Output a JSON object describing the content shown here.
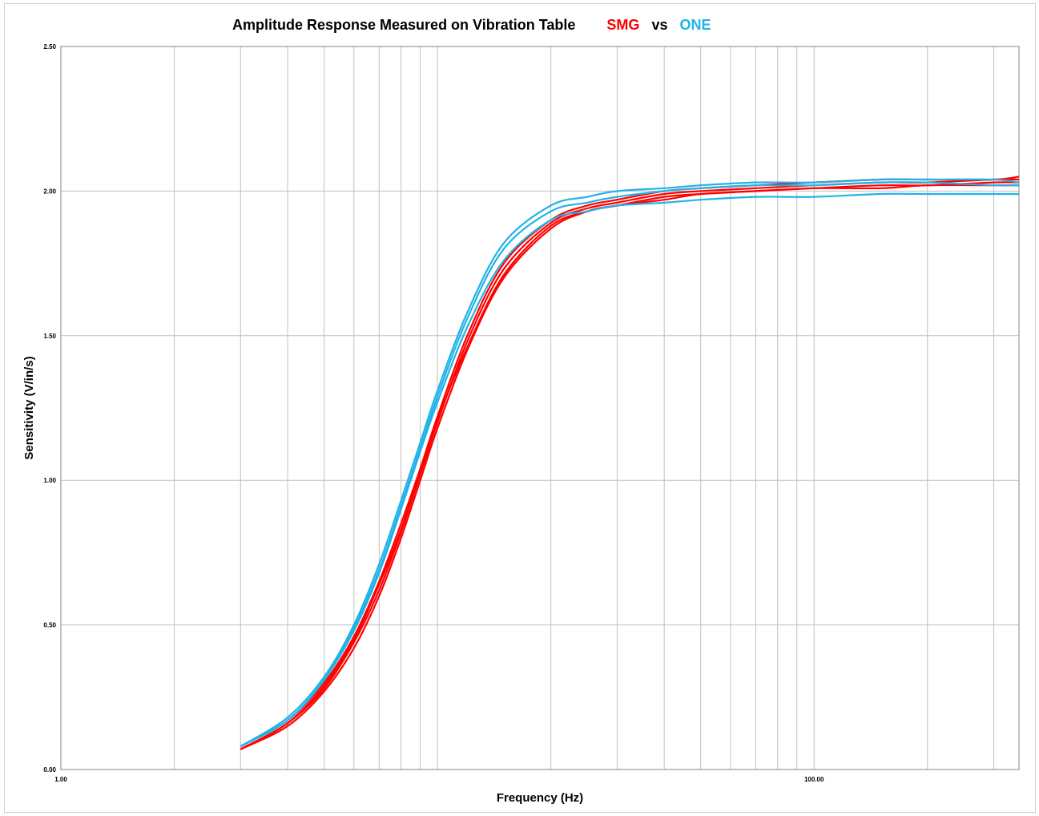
{
  "chart_data": {
    "type": "line",
    "title": "Amplitude Response Measured on Vibration Table",
    "title_tags": [
      {
        "text": "SMG",
        "color": "#ff0000"
      },
      {
        "text": "vs",
        "color": "#000000"
      },
      {
        "text": "ONE",
        "color": "#1fb3e8"
      }
    ],
    "xlabel": "Frequency (Hz)",
    "ylabel": "Sensitivity (V/in/s)",
    "xscale": "log",
    "xlim": [
      1,
      350
    ],
    "ylim": [
      0,
      2.5
    ],
    "x_tick_labels": [
      {
        "value": 1,
        "label": "1.00"
      },
      {
        "value": 100,
        "label": "100.00"
      }
    ],
    "y_tick_labels": [
      {
        "value": 0,
        "label": "0.00"
      },
      {
        "value": 0.5,
        "label": "0.50"
      },
      {
        "value": 1.0,
        "label": "1.00"
      },
      {
        "value": 1.5,
        "label": "1.50"
      },
      {
        "value": 2.0,
        "label": "2.00"
      },
      {
        "value": 2.5,
        "label": "2.50"
      }
    ],
    "grid": true,
    "series": [
      {
        "group": "SMG",
        "color": "#ff0000",
        "x": [
          3,
          4,
          5,
          6,
          7,
          8,
          9,
          10,
          12,
          15,
          20,
          25,
          30,
          40,
          50,
          70,
          100,
          150,
          200,
          300,
          350
        ],
        "y": [
          0.07,
          0.15,
          0.27,
          0.42,
          0.6,
          0.8,
          1.0,
          1.18,
          1.45,
          1.7,
          1.87,
          1.93,
          1.95,
          1.97,
          1.99,
          2.0,
          2.01,
          2.01,
          2.02,
          2.02,
          2.02
        ]
      },
      {
        "group": "SMG",
        "color": "#ff0000",
        "x": [
          3,
          4,
          5,
          6,
          7,
          8,
          9,
          10,
          12,
          15,
          20,
          25,
          30,
          40,
          50,
          70,
          100,
          150,
          200,
          300,
          350
        ],
        "y": [
          0.07,
          0.16,
          0.28,
          0.44,
          0.62,
          0.82,
          1.02,
          1.2,
          1.48,
          1.73,
          1.89,
          1.94,
          1.96,
          1.99,
          2.0,
          2.01,
          2.02,
          2.03,
          2.03,
          2.04,
          2.04
        ]
      },
      {
        "group": "SMG",
        "color": "#ff0000",
        "x": [
          3,
          4,
          5,
          6,
          7,
          8,
          9,
          10,
          12,
          15,
          20,
          25,
          30,
          40,
          50,
          70,
          100,
          150,
          200,
          300,
          350
        ],
        "y": [
          0.08,
          0.17,
          0.3,
          0.46,
          0.65,
          0.85,
          1.04,
          1.22,
          1.5,
          1.75,
          1.9,
          1.95,
          1.97,
          2.0,
          2.01,
          2.02,
          2.03,
          2.04,
          2.04,
          2.04,
          2.05
        ]
      },
      {
        "group": "SMG",
        "color": "#ff0000",
        "x": [
          3,
          4,
          5,
          6,
          7,
          8,
          9,
          10,
          12,
          15,
          20,
          25,
          30,
          40,
          50,
          70,
          100,
          150,
          200,
          300,
          350
        ],
        "y": [
          0.07,
          0.16,
          0.29,
          0.45,
          0.64,
          0.83,
          1.03,
          1.21,
          1.46,
          1.71,
          1.88,
          1.93,
          1.95,
          1.98,
          1.99,
          2.0,
          2.01,
          2.02,
          2.02,
          2.03,
          2.03
        ]
      },
      {
        "group": "ONE",
        "color": "#1fb3e8",
        "x": [
          3,
          4,
          5,
          6,
          7,
          8,
          9,
          10,
          12,
          15,
          20,
          25,
          30,
          40,
          50,
          70,
          100,
          150,
          200,
          300,
          350
        ],
        "y": [
          0.08,
          0.18,
          0.32,
          0.5,
          0.71,
          0.93,
          1.13,
          1.31,
          1.58,
          1.82,
          1.95,
          1.98,
          2.0,
          2.01,
          2.02,
          2.03,
          2.03,
          2.04,
          2.04,
          2.04,
          2.03
        ]
      },
      {
        "group": "ONE",
        "color": "#1fb3e8",
        "x": [
          3,
          4,
          5,
          6,
          7,
          8,
          9,
          10,
          12,
          15,
          20,
          25,
          30,
          40,
          50,
          70,
          100,
          150,
          200,
          300,
          350
        ],
        "y": [
          0.08,
          0.17,
          0.31,
          0.49,
          0.69,
          0.91,
          1.11,
          1.29,
          1.56,
          1.8,
          1.93,
          1.96,
          1.98,
          2.0,
          2.01,
          2.02,
          2.02,
          2.03,
          2.03,
          2.02,
          2.02
        ]
      },
      {
        "group": "ONE",
        "color": "#1fb3e8",
        "x": [
          3,
          4,
          5,
          6,
          7,
          8,
          9,
          10,
          12,
          15,
          20,
          25,
          30,
          40,
          50,
          70,
          100,
          150,
          200,
          300,
          350
        ],
        "y": [
          0.08,
          0.17,
          0.31,
          0.48,
          0.68,
          0.9,
          1.1,
          1.27,
          1.53,
          1.76,
          1.9,
          1.93,
          1.95,
          1.96,
          1.97,
          1.98,
          1.98,
          1.99,
          1.99,
          1.99,
          1.99
        ]
      }
    ]
  }
}
